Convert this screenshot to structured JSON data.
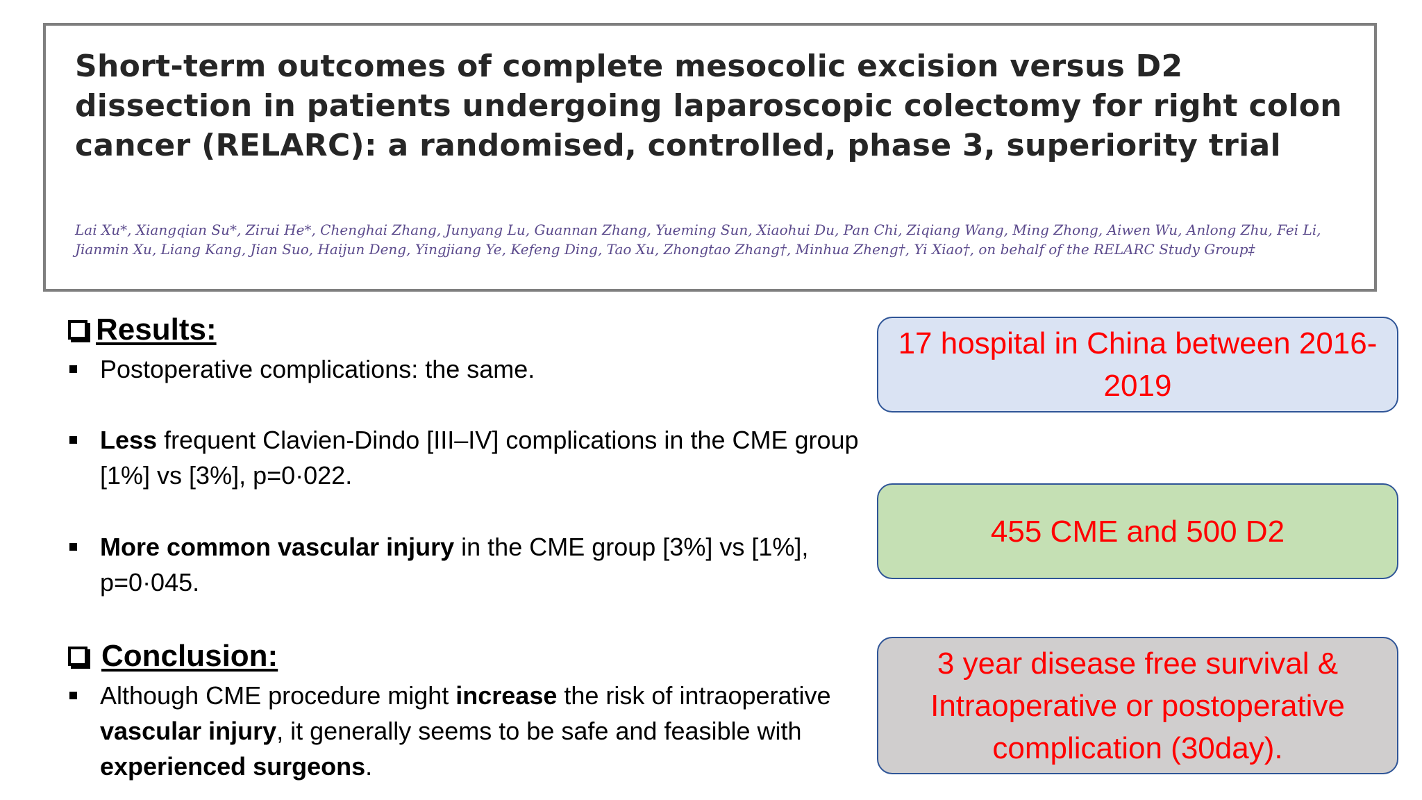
{
  "paper": {
    "title": "Short-term outcomes of complete mesocolic excision versus D2 dissection in patients undergoing laparoscopic colectomy for right colon cancer (RELARC): a randomised, controlled, phase 3, superiority trial",
    "authors": "Lai Xu*, Xiangqian Su*, Zirui He*, Chenghai Zhang, Junyang Lu, Guannan Zhang, Yueming Sun, Xiaohui Du, Pan Chi, Ziqiang Wang, Ming Zhong, Aiwen Wu, Anlong Zhu, Fei Li, Jianmin Xu, Liang Kang, Jian Suo, Haijun Deng, Yingjiang Ye, Kefeng Ding, Tao Xu, Zhongtao Zhang†, Minhua Zheng†, Yi Xiao†, on behalf of the RELARC Study Group‡"
  },
  "results": {
    "heading": "Results:",
    "bullet1": {
      "text": "Postoperative complications: the same."
    },
    "bullet2": {
      "bold": "Less",
      "text": " frequent Clavien-Dindo [III–IV] complications in the CME group [1%] vs [3%], p=0·022."
    },
    "bullet3": {
      "bold": "More common vascular injury",
      "text": " in the CME group [3%] vs [1%], p=0·045."
    }
  },
  "conclusion": {
    "heading": "Conclusion:",
    "t1": "Although CME procedure might ",
    "b1": "increase",
    "t2": " the risk of intraoperative ",
    "b2": "vascular injury",
    "t3": ", it generally seems to be safe and feasible with ",
    "b3": "experienced surgeons",
    "t4": "."
  },
  "boxes": {
    "hospitals": "17 hospital in China between 2016- 2019",
    "groups": "455 CME and 500 D2",
    "outcomes": "3 year disease free survival & Intraoperative or postoperative complication (30day)."
  },
  "colors": {
    "box_text": "#ff0000",
    "box_border": "#2f5597",
    "hospitals_bg": "#dae3f3",
    "groups_bg": "#c5e0b4",
    "outcomes_bg": "#d0cece"
  },
  "icons": [
    "checkbox-icon",
    "bullet-icon"
  ]
}
